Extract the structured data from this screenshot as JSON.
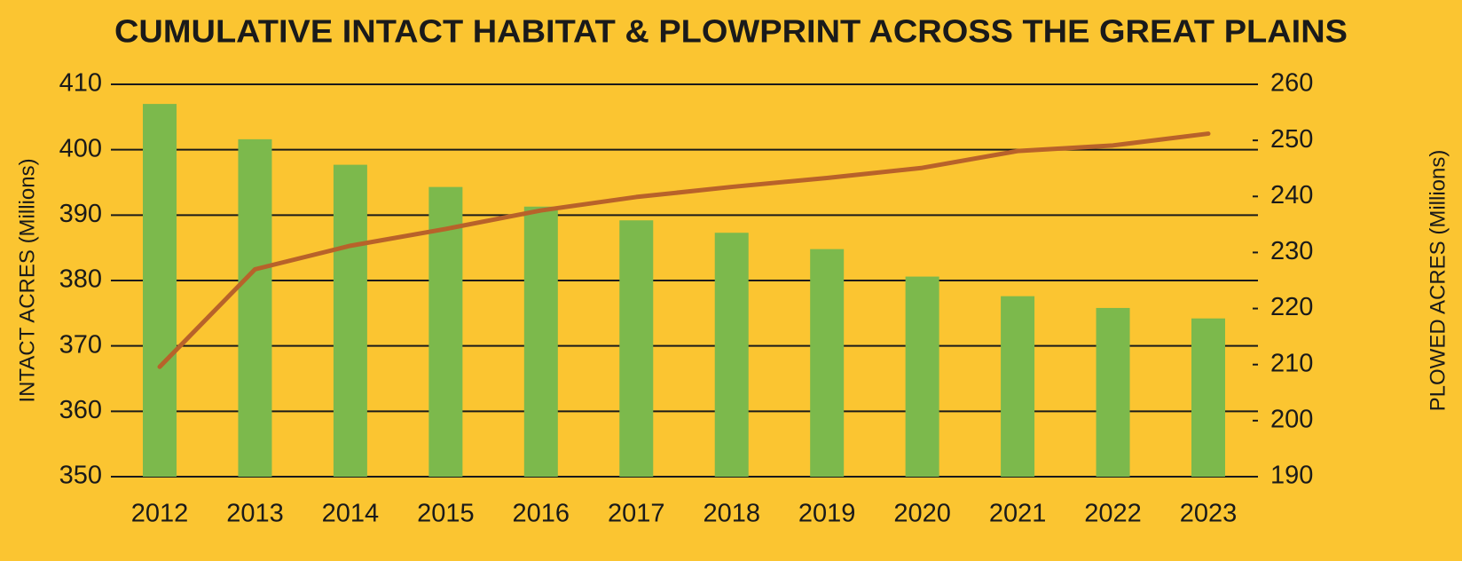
{
  "chart_data": {
    "type": "bar",
    "title": "CUMULATIVE INTACT HABITAT & PLOWPRINT ACROSS THE GREAT PLAINS",
    "y_label": "INTACT ACRES (Millions)",
    "y2_label": "PLOWED ACRES (Millions)",
    "categories": [
      "2012",
      "2013",
      "2014",
      "2015",
      "2016",
      "2017",
      "2018",
      "2019",
      "2020",
      "2021",
      "2022",
      "2023"
    ],
    "series": [
      {
        "type": "bar",
        "axis": "y",
        "color": "#7cb94c",
        "values": [
          407.0,
          401.6,
          397.7,
          394.3,
          391.3,
          389.2,
          387.3,
          384.8,
          380.6,
          377.6,
          375.8,
          374.2
        ]
      },
      {
        "type": "line",
        "axis": "y2",
        "color": "#b8622a",
        "values": [
          209.6,
          227.0,
          231.2,
          234.2,
          237.5,
          239.9,
          241.7,
          243.3,
          245.1,
          248.1,
          249.1,
          251.2
        ]
      }
    ],
    "ylim": [
      350,
      410
    ],
    "yticks": [
      350,
      360,
      370,
      380,
      390,
      400,
      410
    ],
    "y2lim": [
      190,
      260
    ],
    "y2ticks": [
      190,
      200,
      210,
      220,
      230,
      240,
      250,
      260
    ],
    "grid": true
  }
}
